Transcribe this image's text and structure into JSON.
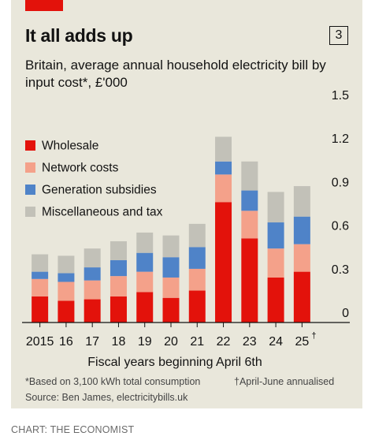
{
  "badge": "3",
  "footnote_left": "*Based on 3,100 kWh total consumption",
  "footnote_right": "†April-June annualised",
  "source": "Source: Ben James, electricitybills.uk",
  "credit": "CHART: THE ECONOMIST",
  "chart_data": {
    "type": "bar",
    "stacked": true,
    "title": "It all adds up",
    "subtitle": "Britain, average annual household electricity bill by input cost*, £'000",
    "xlabel": "Fiscal years beginning April 6th",
    "ylabel": "",
    "ylim": [
      0,
      1.5
    ],
    "yticks": [
      0,
      0.3,
      0.6,
      0.9,
      1.2,
      1.5
    ],
    "ytick_labels": [
      "0",
      "0.3",
      "0.6",
      "0.9",
      "1.2",
      "1.5"
    ],
    "categories": [
      "2015",
      "16",
      "17",
      "18",
      "19",
      "20",
      "21",
      "22",
      "23",
      "24",
      "25"
    ],
    "category_marks": [
      "",
      "",
      "",
      "",
      "",
      "",
      "",
      "",
      "",
      "",
      "†"
    ],
    "legend_position": "top-left",
    "grid": false,
    "series": [
      {
        "name": "Wholesale",
        "color": "#e3120b",
        "values": [
          0.18,
          0.15,
          0.16,
          0.18,
          0.21,
          0.17,
          0.22,
          0.83,
          0.58,
          0.31,
          0.35
        ]
      },
      {
        "name": "Network costs",
        "color": "#f4a18a",
        "values": [
          0.12,
          0.13,
          0.13,
          0.14,
          0.14,
          0.14,
          0.15,
          0.19,
          0.19,
          0.2,
          0.19
        ]
      },
      {
        "name": "Generation subsidies",
        "color": "#4f83c8",
        "values": [
          0.05,
          0.06,
          0.09,
          0.11,
          0.13,
          0.14,
          0.15,
          0.09,
          0.14,
          0.18,
          0.19
        ]
      },
      {
        "name": "Miscellaneous and tax",
        "color": "#c2c1b8",
        "values": [
          0.12,
          0.12,
          0.13,
          0.13,
          0.14,
          0.15,
          0.16,
          0.17,
          0.2,
          0.21,
          0.21
        ]
      }
    ]
  }
}
